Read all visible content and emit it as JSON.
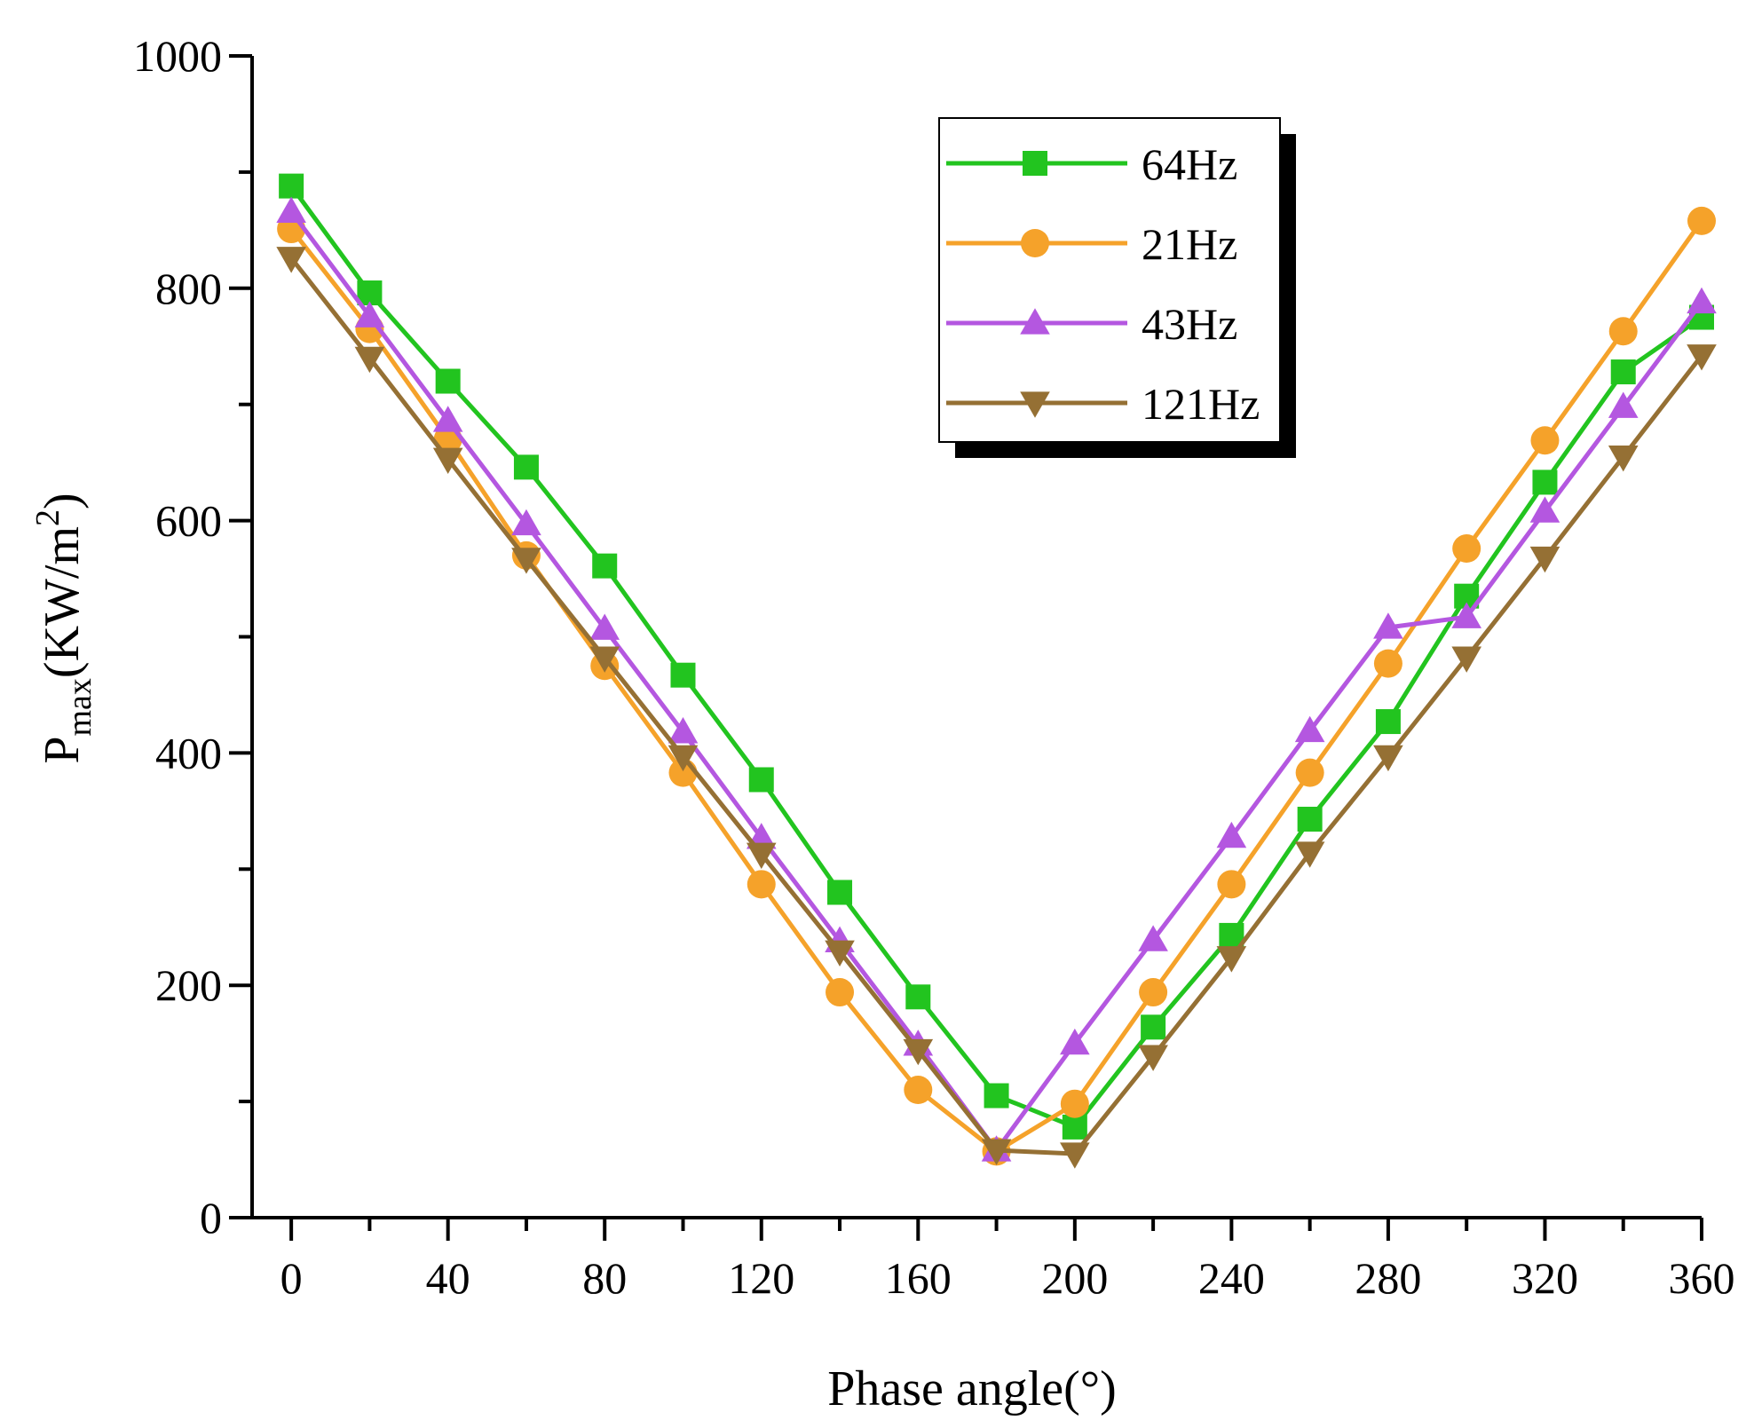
{
  "chart_data": {
    "type": "line",
    "title": "",
    "xlabel": "Phase angle(°)",
    "ylabel": {
      "main": "P",
      "subscript": "max",
      "unit_prefix": "(KW/m",
      "unit_superscript": "2",
      "unit_suffix": ")"
    },
    "xlim": [
      -10,
      360
    ],
    "ylim": [
      0,
      1000
    ],
    "x_ticks": [
      0,
      40,
      80,
      120,
      160,
      200,
      240,
      280,
      320,
      360
    ],
    "x_minor_ticks": [
      20,
      60,
      100,
      140,
      180,
      220,
      260,
      300,
      340
    ],
    "y_ticks": [
      0,
      200,
      400,
      600,
      800,
      1000
    ],
    "y_minor_ticks": [
      100,
      300,
      500,
      700,
      900
    ],
    "grid": false,
    "legend_position": "top-right",
    "x": [
      0,
      20,
      40,
      60,
      80,
      100,
      120,
      140,
      160,
      180,
      200,
      220,
      240,
      260,
      280,
      300,
      320,
      340,
      360
    ],
    "series": [
      {
        "name": "64Hz",
        "color": "#22c41f",
        "marker": "square",
        "values": [
          888,
          796,
          720,
          646,
          561,
          467,
          377,
          280,
          190,
          105,
          78,
          164,
          243,
          343,
          427,
          535,
          633,
          728,
          775
        ]
      },
      {
        "name": "21Hz",
        "color": "#f5a22a",
        "marker": "circle",
        "values": [
          851,
          765,
          670,
          570,
          475,
          383,
          287,
          194,
          110,
          57,
          98,
          194,
          287,
          383,
          477,
          576,
          669,
          763,
          858
        ]
      },
      {
        "name": "43Hz",
        "color": "#b457e0",
        "marker": "triangle-up",
        "values": [
          866,
          776,
          686,
          597,
          507,
          418,
          327,
          238,
          149,
          58,
          150,
          239,
          328,
          419,
          508,
          517,
          608,
          698,
          788
        ]
      },
      {
        "name": "121Hz",
        "color": "#957034",
        "marker": "triangle-down",
        "values": [
          826,
          740,
          653,
          567,
          482,
          397,
          313,
          229,
          144,
          58,
          55,
          139,
          224,
          314,
          397,
          482,
          568,
          655,
          742
        ]
      }
    ]
  }
}
